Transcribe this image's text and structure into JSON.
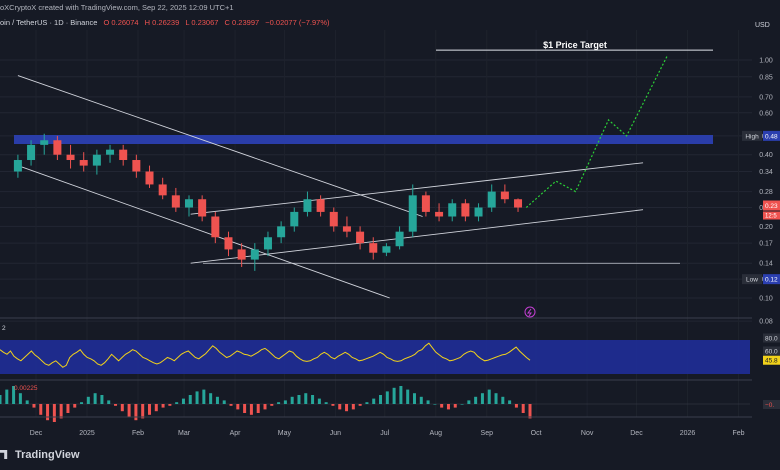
{
  "header": {
    "creator": "oXCryptoX created with TradingView.com, Sep 22, 2025 12:09 UTC+1",
    "symbol": "oin / TetherUS · 1D · Binance",
    "open": "O 0.26074",
    "high": "H 0.26239",
    "low": "L 0.23067",
    "close": "C 0.23997",
    "change": "−0.02077 (−7.97%)"
  },
  "brand": {
    "name": "TradingView",
    "icon": "tradingview-logo-icon"
  },
  "currency_label": "USD",
  "annotations": {
    "target": "$1 Price Target",
    "high_tag": "High",
    "high_value": "0.48",
    "low_tag": "Low",
    "low_value": "0.12",
    "current_price": "0.23",
    "countdown": "12:5",
    "rsi_value": "45.8",
    "rsi_ma": "60.0",
    "rsi_prefix": "2",
    "macd_label": "0.00225",
    "macd_right": "−0."
  },
  "colors": {
    "up": "#26a69a",
    "down": "#ef5350",
    "zone": "#2b3fb0",
    "projection": "#2bd137",
    "rsi": "#f2d21b",
    "rsi_band": "#1f2d98"
  },
  "chart_data": {
    "type": "candlestick",
    "price_scale": "log",
    "price_ticks": [
      "1.00",
      "0.85",
      "0.70",
      "0.60",
      "0.48",
      "0.40",
      "0.34",
      "0.28",
      "0.24",
      "0.20",
      "0.17",
      "0.14",
      "0.12",
      "0.10",
      "0.08"
    ],
    "x_ticks": [
      "Dec",
      "2025",
      "Feb",
      "Mar",
      "Apr",
      "May",
      "Jun",
      "Jul",
      "Aug",
      "Sep",
      "Oct",
      "Nov",
      "Dec",
      "2026",
      "Feb"
    ],
    "ohlc": [
      [
        "2024-11-20",
        0.34,
        0.4,
        0.32,
        0.38
      ],
      [
        "2024-11-28",
        0.38,
        0.46,
        0.36,
        0.44
      ],
      [
        "2024-12-06",
        0.44,
        0.49,
        0.4,
        0.46
      ],
      [
        "2024-12-14",
        0.46,
        0.48,
        0.38,
        0.4
      ],
      [
        "2024-12-22",
        0.4,
        0.44,
        0.35,
        0.38
      ],
      [
        "2024-12-30",
        0.38,
        0.41,
        0.34,
        0.36
      ],
      [
        "2025-01-07",
        0.36,
        0.42,
        0.33,
        0.4
      ],
      [
        "2025-01-15",
        0.4,
        0.44,
        0.37,
        0.42
      ],
      [
        "2025-01-23",
        0.42,
        0.44,
        0.36,
        0.38
      ],
      [
        "2025-01-31",
        0.38,
        0.4,
        0.32,
        0.34
      ],
      [
        "2025-02-08",
        0.34,
        0.36,
        0.29,
        0.3
      ],
      [
        "2025-02-16",
        0.3,
        0.32,
        0.26,
        0.27
      ],
      [
        "2025-02-24",
        0.27,
        0.29,
        0.23,
        0.24
      ],
      [
        "2025-03-04",
        0.24,
        0.27,
        0.22,
        0.26
      ],
      [
        "2025-03-12",
        0.26,
        0.27,
        0.21,
        0.22
      ],
      [
        "2025-03-20",
        0.22,
        0.23,
        0.17,
        0.18
      ],
      [
        "2025-03-28",
        0.18,
        0.19,
        0.15,
        0.16
      ],
      [
        "2025-04-05",
        0.16,
        0.17,
        0.135,
        0.145
      ],
      [
        "2025-04-13",
        0.145,
        0.17,
        0.13,
        0.16
      ],
      [
        "2025-04-21",
        0.16,
        0.19,
        0.15,
        0.18
      ],
      [
        "2025-04-29",
        0.18,
        0.21,
        0.17,
        0.2
      ],
      [
        "2025-05-07",
        0.2,
        0.24,
        0.19,
        0.23
      ],
      [
        "2025-05-15",
        0.23,
        0.28,
        0.22,
        0.26
      ],
      [
        "2025-05-23",
        0.26,
        0.27,
        0.22,
        0.23
      ],
      [
        "2025-05-31",
        0.23,
        0.24,
        0.19,
        0.2
      ],
      [
        "2025-06-08",
        0.2,
        0.22,
        0.18,
        0.19
      ],
      [
        "2025-06-16",
        0.19,
        0.2,
        0.16,
        0.17
      ],
      [
        "2025-06-24",
        0.17,
        0.18,
        0.145,
        0.155
      ],
      [
        "2025-07-02",
        0.155,
        0.17,
        0.15,
        0.165
      ],
      [
        "2025-07-10",
        0.165,
        0.2,
        0.16,
        0.19
      ],
      [
        "2025-07-18",
        0.19,
        0.3,
        0.18,
        0.27
      ],
      [
        "2025-07-26",
        0.27,
        0.28,
        0.22,
        0.23
      ],
      [
        "2025-08-03",
        0.23,
        0.25,
        0.21,
        0.22
      ],
      [
        "2025-08-11",
        0.22,
        0.26,
        0.21,
        0.25
      ],
      [
        "2025-08-19",
        0.25,
        0.26,
        0.21,
        0.22
      ],
      [
        "2025-08-27",
        0.22,
        0.25,
        0.21,
        0.24
      ],
      [
        "2025-09-04",
        0.24,
        0.3,
        0.23,
        0.28
      ],
      [
        "2025-09-12",
        0.28,
        0.3,
        0.25,
        0.26
      ],
      [
        "2025-09-20",
        0.26,
        0.262,
        0.23,
        0.24
      ]
    ],
    "horizontal_levels": {
      "target": 1.1,
      "zone_top": 0.5,
      "zone_bottom": 0.455,
      "support": 0.14
    },
    "channels": [
      {
        "from": [
          "2024-11-20",
          0.86
        ],
        "to": [
          "2025-07-24",
          0.22
        ]
      },
      {
        "from": [
          "2024-11-20",
          0.36
        ],
        "to": [
          "2025-07-04",
          0.1
        ]
      },
      {
        "from": [
          "2025-03-05",
          0.225
        ],
        "to": [
          "2025-12-05",
          0.37
        ]
      },
      {
        "from": [
          "2025-03-05",
          0.14
        ],
        "to": [
          "2025-12-05",
          0.235
        ]
      }
    ],
    "projection": [
      [
        "2025-09-25",
        0.24
      ],
      [
        "2025-10-13",
        0.31
      ],
      [
        "2025-10-25",
        0.28
      ],
      [
        "2025-11-14",
        0.56
      ],
      [
        "2025-11-25",
        0.48
      ],
      [
        "2025-12-20",
        1.05
      ]
    ],
    "rsi": [
      62,
      58,
      55,
      60,
      52,
      48,
      45,
      50,
      55,
      60,
      54,
      50,
      45,
      40,
      38,
      42,
      45,
      40,
      35,
      38,
      50,
      55,
      58,
      62,
      55,
      50,
      48,
      45,
      40,
      38,
      42,
      48,
      55,
      50,
      45,
      50,
      55,
      58,
      62,
      60,
      55,
      50,
      48,
      45,
      42,
      40,
      42,
      46,
      50,
      48,
      45,
      50,
      55,
      58,
      60,
      55,
      50,
      48,
      52,
      56,
      62,
      68,
      64,
      58,
      54,
      50,
      52,
      56,
      60,
      58,
      55,
      54,
      52,
      55,
      58,
      62,
      64,
      60,
      55,
      50,
      48,
      52,
      56,
      60,
      58,
      52,
      48,
      45,
      44,
      45,
      48,
      50,
      55,
      58,
      55,
      50,
      48,
      52,
      55,
      58,
      55,
      50,
      48,
      45,
      46,
      48,
      50,
      52,
      55,
      58,
      55,
      50,
      48,
      45,
      44,
      45,
      48,
      50,
      52,
      55,
      60,
      62,
      68,
      72,
      65,
      58,
      54,
      50,
      48,
      45,
      46,
      48,
      50,
      55,
      58,
      60,
      58,
      52,
      48,
      45,
      46,
      48,
      50,
      52,
      54,
      55,
      58,
      62,
      66,
      60,
      55,
      50,
      45.8
    ],
    "rsi_levels": [
      80,
      60,
      45.8
    ],
    "macd": [
      0.5,
      0.8,
      1,
      0.6,
      0.2,
      -0.2,
      -0.6,
      -0.9,
      -1,
      -0.8,
      -0.5,
      -0.2,
      0.1,
      0.4,
      0.6,
      0.5,
      0.2,
      -0.1,
      -0.4,
      -0.7,
      -0.9,
      -0.8,
      -0.6,
      -0.4,
      -0.2,
      -0.1,
      0.1,
      0.3,
      0.5,
      0.7,
      0.8,
      0.6,
      0.4,
      0.2,
      -0.1,
      -0.3,
      -0.5,
      -0.6,
      -0.5,
      -0.3,
      -0.1,
      0.1,
      0.2,
      0.4,
      0.5,
      0.6,
      0.5,
      0.3,
      0.1,
      -0.1,
      -0.3,
      -0.4,
      -0.3,
      -0.1,
      0.1,
      0.3,
      0.5,
      0.7,
      0.9,
      1,
      0.8,
      0.6,
      0.4,
      0.2,
      0.0,
      -0.2,
      -0.3,
      -0.2,
      0.0,
      0.2,
      0.4,
      0.6,
      0.8,
      0.6,
      0.4,
      0.2,
      -0.2,
      -0.5,
      -0.8
    ]
  }
}
